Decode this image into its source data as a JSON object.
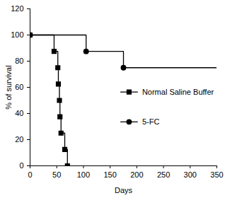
{
  "chart_data": {
    "type": "step",
    "x_label": "Days",
    "y_label": "% of survival",
    "xlim": [
      0,
      350
    ],
    "xticks": [
      0,
      50,
      100,
      150,
      200,
      250,
      300,
      350
    ],
    "ylim": [
      0,
      120
    ],
    "yticks": [
      0,
      20,
      40,
      60,
      80,
      100,
      120
    ],
    "legend": "right",
    "series": [
      {
        "name": "Normal Saline Buffer",
        "color": "#000000",
        "marker": "square",
        "x": [
          0,
          45,
          52,
          53,
          55,
          56,
          58,
          65,
          70
        ],
        "values": [
          100,
          87.5,
          75,
          62.5,
          50,
          37.5,
          25,
          12.5,
          0
        ]
      },
      {
        "name": "5-FC",
        "color": "#000000",
        "marker": "circle",
        "x": [
          0,
          105,
          175,
          350
        ],
        "values": [
          100,
          87.5,
          75,
          75
        ]
      }
    ]
  }
}
